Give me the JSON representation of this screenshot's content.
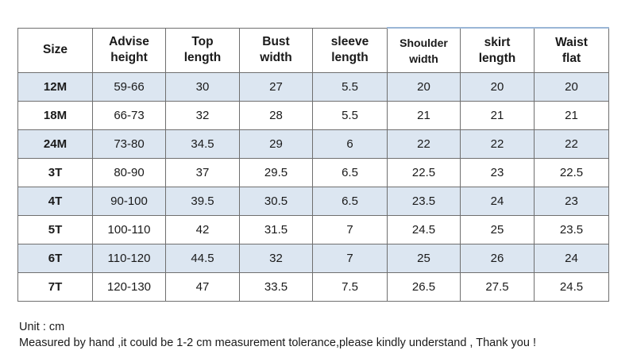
{
  "table": {
    "headers": [
      "Size",
      "Advise\nheight",
      "Top\nlength",
      "Bust\nwidth",
      "sleeve\nlength",
      "Shoulder\nwidth",
      "skirt\nlength",
      "Waist\nflat"
    ],
    "rows": [
      [
        "12M",
        "59-66",
        "30",
        "27",
        "5.5",
        "20",
        "20",
        "20"
      ],
      [
        "18M",
        "66-73",
        "32",
        "28",
        "5.5",
        "21",
        "21",
        "21"
      ],
      [
        "24M",
        "73-80",
        "34.5",
        "29",
        "6",
        "22",
        "22",
        "22"
      ],
      [
        "3T",
        "80-90",
        "37",
        "29.5",
        "6.5",
        "22.5",
        "23",
        "22.5"
      ],
      [
        "4T",
        "90-100",
        "39.5",
        "30.5",
        "6.5",
        "23.5",
        "24",
        "23"
      ],
      [
        "5T",
        "100-110",
        "42",
        "31.5",
        "7",
        "24.5",
        "25",
        "23.5"
      ],
      [
        "6T",
        "110-120",
        "44.5",
        "32",
        "7",
        "25",
        "26",
        "24"
      ],
      [
        "7T",
        "120-130",
        "47",
        "33.5",
        "7.5",
        "26.5",
        "27.5",
        "24.5"
      ]
    ]
  },
  "notes": {
    "unit": "Unit : cm",
    "disclaimer": "Measured by hand ,it could be 1-2 cm measurement tolerance,please kindly understand , Thank you !"
  },
  "colors": {
    "row_shade": "#dce6f1",
    "border": "#6f6f6f",
    "header_accent": "#9ab6d6"
  }
}
